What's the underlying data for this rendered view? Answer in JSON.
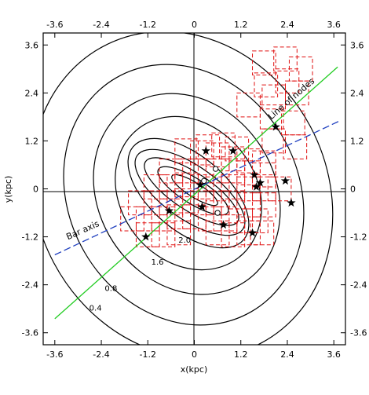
{
  "chart_data": {
    "type": "scatter",
    "title": "",
    "xlabel": "x(kpc)",
    "ylabel": "y(kpc)",
    "xlim": [
      -3.9,
      3.9
    ],
    "ylim": [
      -3.9,
      3.9
    ],
    "ticks": [
      -3.6,
      -2.4,
      -1.2,
      0,
      1.2,
      2.4,
      3.6
    ],
    "tick_labels": [
      "-3.6",
      "-2.4",
      "-1.2",
      "0",
      "1.2",
      "2.4",
      "3.6"
    ],
    "grid": false,
    "contour_levels": [
      "0.4",
      "0.8",
      "1.6",
      "2.0"
    ],
    "lines": [
      {
        "label": "Line of nodes",
        "color": "#22cc22",
        "style": "solid",
        "x": [
          -3.6,
          3.7
        ],
        "y": [
          -3.25,
          3.05
        ]
      },
      {
        "label": "Bar axis",
        "color": "#1f3fbf",
        "style": "dashed",
        "x": [
          -3.6,
          3.75
        ],
        "y": [
          -1.65,
          1.7
        ]
      }
    ],
    "stars": {
      "marker": "star",
      "color": "#000000",
      "x": [
        0.3,
        1.0,
        1.55,
        1.7,
        1.6,
        0.15,
        -0.65,
        0.2,
        0.75,
        1.5,
        2.1,
        2.35,
        2.5,
        -1.25
      ],
      "y": [
        0.95,
        0.95,
        0.35,
        0.15,
        0.05,
        0.1,
        -0.55,
        -0.45,
        -0.9,
        -1.1,
        1.55,
        0.2,
        -0.35,
        -1.2
      ]
    },
    "open_circles": {
      "marker": "circle",
      "x": [
        0.55,
        0.25,
        0.6
      ],
      "y": [
        0.5,
        0.2,
        -0.6
      ]
    },
    "boxes": {
      "style": "dashed",
      "color": "#e01010",
      "size": 0.6,
      "cx": [
        1.8,
        2.35,
        2.75,
        1.85,
        2.4,
        2.05,
        2.65,
        1.4,
        2.0,
        2.55,
        2.05,
        2.6,
        0.35,
        0.75,
        1.1,
        -0.2,
        0.2,
        0.6,
        1.0,
        1.4,
        1.8,
        -0.6,
        -0.2,
        0.2,
        0.6,
        1.0,
        1.4,
        1.8,
        -1.0,
        -0.6,
        -0.2,
        0.2,
        0.6,
        1.0,
        1.4,
        1.8,
        2.2,
        -1.4,
        -1.0,
        -0.6,
        -0.2,
        0.2,
        0.6,
        1.0,
        1.4,
        1.8,
        -1.6,
        -1.2,
        -0.8,
        -0.4,
        0.0,
        0.4,
        0.8,
        1.2,
        1.6,
        -1.2,
        -0.8,
        -0.4,
        0.6,
        1.0,
        1.4,
        1.75
      ],
      "cy": [
        3.15,
        3.25,
        3.0,
        2.6,
        2.7,
        2.3,
        2.4,
        2.1,
        1.8,
        1.65,
        1.2,
        1.05,
        1.05,
        1.1,
        1.0,
        0.95,
        0.9,
        0.85,
        0.75,
        0.7,
        0.65,
        0.45,
        0.45,
        0.45,
        0.45,
        0.45,
        0.4,
        0.35,
        0.05,
        0.05,
        0.1,
        0.05,
        0.0,
        0.05,
        0.0,
        0.0,
        0.0,
        -0.35,
        -0.35,
        -0.35,
        -0.3,
        -0.35,
        -0.35,
        -0.35,
        -0.4,
        -0.4,
        -0.75,
        -0.75,
        -0.75,
        -0.7,
        -0.7,
        -0.75,
        -0.75,
        -0.8,
        -0.8,
        -1.15,
        -1.15,
        -1.1,
        -1.1,
        -1.15,
        -1.1,
        -1.1
      ]
    },
    "annotations": [
      {
        "text": "Line of nodes",
        "x": 2.55,
        "y": 2.2,
        "angle_deg": -41
      },
      {
        "text": "Bar axis",
        "x": -2.85,
        "y": -1.1,
        "angle_deg": -24
      },
      {
        "text": "2.0",
        "x": -0.25,
        "y": -1.35
      },
      {
        "text": "1.6",
        "x": -0.95,
        "y": -1.9
      },
      {
        "text": "0.8",
        "x": -2.15,
        "y": -2.55
      },
      {
        "text": "0.4",
        "x": -2.55,
        "y": -3.05
      }
    ]
  }
}
